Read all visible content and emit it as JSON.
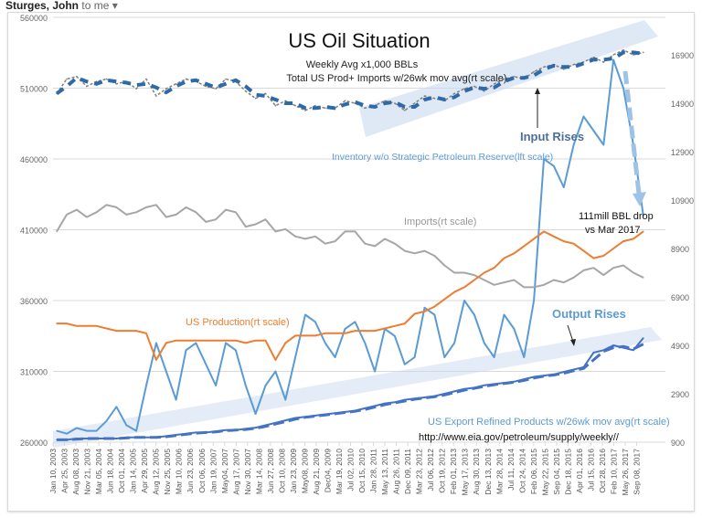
{
  "email_header": {
    "sender": "Sturges, John",
    "recipient": "to me",
    "menu_icon": "chevron-down-icon"
  },
  "chart_data": {
    "type": "line",
    "title": "US Oil Situation",
    "subtitle": "Weekly Avg x1,000 BBLs",
    "grid": true,
    "left_axis": {
      "ticks": [
        "560000",
        "510000",
        "460000",
        "410000",
        "360000",
        "310000",
        "260000"
      ],
      "ylim": [
        260000,
        560000
      ]
    },
    "right_axis": {
      "ticks": [
        "16900",
        "14900",
        "12900",
        "10900",
        "8900",
        "6900",
        "4900",
        "2900",
        "900"
      ],
      "ylim": [
        900,
        16900
      ]
    },
    "x_tick_labels": [
      "Jan 10, 2003",
      "Apr 25, 2003",
      "Aug 08, 2003",
      "Nov 21, 2003",
      "Mar 05, 2004",
      "Jun 18, 2004",
      "Oct 01, 2004",
      "Jan 14, 2005",
      "Apr 29, 2005",
      "Aug 12, 2005",
      "Nov 25, 2005",
      "Mar 10, 2006",
      "Jun 23, 2006",
      "Oct 06, 2006",
      "Jan 19, 2007",
      "May04, 2007",
      "Aug 17, 2007",
      "Nov 30, 2007",
      "Mar 14, 2008",
      "Jun 27, 2008",
      "Oct 10, 2008",
      "Jan 23, 2009",
      "May08, 2009",
      "Aug 21, 2009",
      "Dec04, 2009",
      "Mar 19, 2010",
      "Jul 02, 2010",
      "Oct 15, 2010",
      "Jan 28, 2011",
      "May 13, 2011",
      "Aug 26, 2011",
      "Dec 09, 2011",
      "Mar 23, 2012",
      "Jul 06, 2012",
      "Oct 19, 2012",
      "Feb 01, 2013",
      "May 17, 2013",
      "Aug 30, 2013",
      "Dec 13, 2013",
      "Mar 28, 2014",
      "Jul 11, 2014",
      "Oct 24, 2014",
      "Feb 06, 2015",
      "May 22, 2015",
      "Sep 04, 2015",
      "Dec 18, 2015",
      "Apr 01, 2016",
      "Jul 15, 2016",
      "Oct 28, 2016",
      "Feb 10, 2017",
      "May 26, 2017",
      "Sep 08, 2017"
    ],
    "x_range": [
      "2003 Q1",
      "2017 Q4"
    ],
    "series": [
      {
        "name": "Inventory w/o Strategic Petroleum Reserve(lft scale)",
        "axis": "left",
        "color": "#5b9bd5",
        "values": [
          268000,
          266000,
          270000,
          268000,
          268000,
          275000,
          285000,
          272000,
          268000,
          300000,
          330000,
          310000,
          290000,
          325000,
          330000,
          315000,
          300000,
          330000,
          325000,
          300000,
          280000,
          300000,
          310000,
          290000,
          320000,
          350000,
          345000,
          330000,
          320000,
          340000,
          345000,
          330000,
          310000,
          340000,
          335000,
          315000,
          320000,
          355000,
          350000,
          320000,
          330000,
          360000,
          350000,
          330000,
          320000,
          350000,
          340000,
          320000,
          360000,
          460000,
          455000,
          440000,
          470000,
          490000,
          480000,
          470000,
          530000,
          510000,
          470000,
          420000
        ]
      },
      {
        "name": "Total US Prod+ Imports w/26wk mov avg(rt scale)",
        "axis": "right",
        "color": "#808080",
        "values": [
          15300,
          15900,
          16000,
          15600,
          15800,
          15900,
          15700,
          15800,
          15500,
          15900,
          15200,
          15500,
          15700,
          15900,
          15800,
          15600,
          15500,
          15900,
          15800,
          15400,
          15100,
          15300,
          14800,
          15000,
          14800,
          14600,
          14800,
          14700,
          14700,
          15000,
          14900,
          14700,
          14800,
          15000,
          14900,
          14600,
          14900,
          15200,
          15100,
          15000,
          15300,
          15500,
          15600,
          15400,
          15700,
          15900,
          16000,
          15900,
          16200,
          16400,
          16500,
          16300,
          16500,
          16600,
          16800,
          16600,
          16900,
          17100,
          16900,
          17000
        ]
      },
      {
        "name": "Imports(rt scale)",
        "axis": "right",
        "color": "#a6a6a6",
        "values": [
          9600,
          10300,
          10500,
          10200,
          10400,
          10700,
          10600,
          10300,
          10400,
          10600,
          10700,
          10200,
          10300,
          10600,
          10400,
          10000,
          10100,
          10500,
          10400,
          9800,
          9900,
          10100,
          9600,
          9700,
          9400,
          9300,
          9400,
          9100,
          9200,
          9600,
          9600,
          9100,
          9000,
          9300,
          9100,
          8800,
          8700,
          8800,
          8600,
          8200,
          7900,
          7900,
          7800,
          7600,
          7400,
          7500,
          7600,
          7300,
          7300,
          7400,
          7600,
          7500,
          7700,
          8000,
          8100,
          7800,
          8100,
          8200,
          7900,
          7700
        ]
      },
      {
        "name": "US Production(rt scale)",
        "axis": "right",
        "color": "#ed7d31",
        "values": [
          5800,
          5800,
          5700,
          5700,
          5700,
          5600,
          5500,
          5500,
          5500,
          5400,
          4300,
          5000,
          5100,
          5100,
          5100,
          5100,
          5100,
          5100,
          5100,
          5000,
          5100,
          5100,
          4300,
          5000,
          5300,
          5300,
          5300,
          5400,
          5400,
          5400,
          5500,
          5500,
          5500,
          5600,
          5700,
          5800,
          6200,
          6300,
          6500,
          6800,
          7100,
          7300,
          7600,
          7900,
          8100,
          8500,
          8700,
          9000,
          9300,
          9600,
          9400,
          9200,
          9100,
          8800,
          8500,
          8600,
          8900,
          9200,
          9300,
          9600
        ]
      },
      {
        "name": "US Export Refined Products w/26wk mov avg(rt scale)",
        "axis": "right",
        "color": "#4472c4",
        "values": [
          1000,
          1000,
          1050,
          1050,
          1050,
          1050,
          1050,
          1100,
          1100,
          1100,
          1100,
          1150,
          1200,
          1250,
          1300,
          1300,
          1350,
          1400,
          1400,
          1450,
          1500,
          1600,
          1700,
          1800,
          1900,
          1950,
          2000,
          2050,
          2100,
          2150,
          2200,
          2300,
          2400,
          2500,
          2550,
          2650,
          2700,
          2750,
          2800,
          2900,
          3000,
          3100,
          3150,
          3250,
          3300,
          3350,
          3400,
          3500,
          3600,
          3650,
          3700,
          3800,
          3900,
          4000,
          4600,
          4700,
          4900,
          4800,
          4700,
          5200
        ]
      }
    ],
    "moving_average_color": "#2e6aa8",
    "annotations": {
      "total_label": "Total US Prod+ Imports w/26wk mov avg(rt scale)",
      "input_rises": "Input Rises",
      "inventory_label": "Inventory w/o Strategic Petroleum Reserve(lft scale)",
      "imports_label": "Imports(rt scale)",
      "drop_line1": "111mill BBL drop",
      "drop_line2": "vs Mar 2017",
      "production_label": "US Production(rt scale)",
      "output_rises": "Output Rises",
      "exports_label": "US Export Refined Products w/26wk mov avg(rt scale)",
      "source": "http://www.eia.gov/petroleum/supply/weekly//"
    }
  }
}
